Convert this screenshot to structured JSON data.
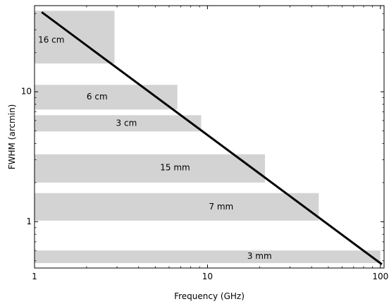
{
  "chart_data": {
    "type": "line",
    "title": "",
    "xlabel": "Frequency (GHz)",
    "ylabel": "FWHM (arcmin)",
    "xscale": "log",
    "yscale": "log",
    "xlim": [
      1,
      105
    ],
    "ylim": [
      0.44,
      46
    ],
    "xticks": [
      {
        "value": 1,
        "label": "1"
      },
      {
        "value": 10,
        "label": "10"
      },
      {
        "value": 100,
        "label": "100"
      }
    ],
    "yticks": [
      {
        "value": 1,
        "label": "1"
      },
      {
        "value": 10,
        "label": "10"
      }
    ],
    "grid": false,
    "series": [
      {
        "x": [
          1.1,
          102
        ],
        "y": [
          41,
          0.47
        ],
        "color": "#000000"
      }
    ],
    "bands": [
      {
        "label": "16 cm",
        "x": [
          1,
          2.9
        ],
        "y": [
          16.5,
          42
        ],
        "label_x": 1.25,
        "label_y": 25
      },
      {
        "label": "6 cm",
        "x": [
          1,
          6.7
        ],
        "y": [
          7.3,
          11.3
        ],
        "label_x": 2.3,
        "label_y": 9.1
      },
      {
        "label": "3 cm",
        "x": [
          1,
          9.2
        ],
        "y": [
          4.95,
          6.6
        ],
        "label_x": 3.4,
        "label_y": 5.7
      },
      {
        "label": "15 mm",
        "x": [
          1,
          21.5
        ],
        "y": [
          2.0,
          3.3
        ],
        "label_x": 6.5,
        "label_y": 2.6
      },
      {
        "label": "7 mm",
        "x": [
          1,
          44
        ],
        "y": [
          1.02,
          1.66
        ],
        "label_x": 12,
        "label_y": 1.3
      },
      {
        "label": "3 mm",
        "x": [
          1,
          100
        ],
        "y": [
          0.48,
          0.6
        ],
        "label_x": 20,
        "label_y": 0.54
      }
    ],
    "band_color": "#d3d3d3"
  }
}
